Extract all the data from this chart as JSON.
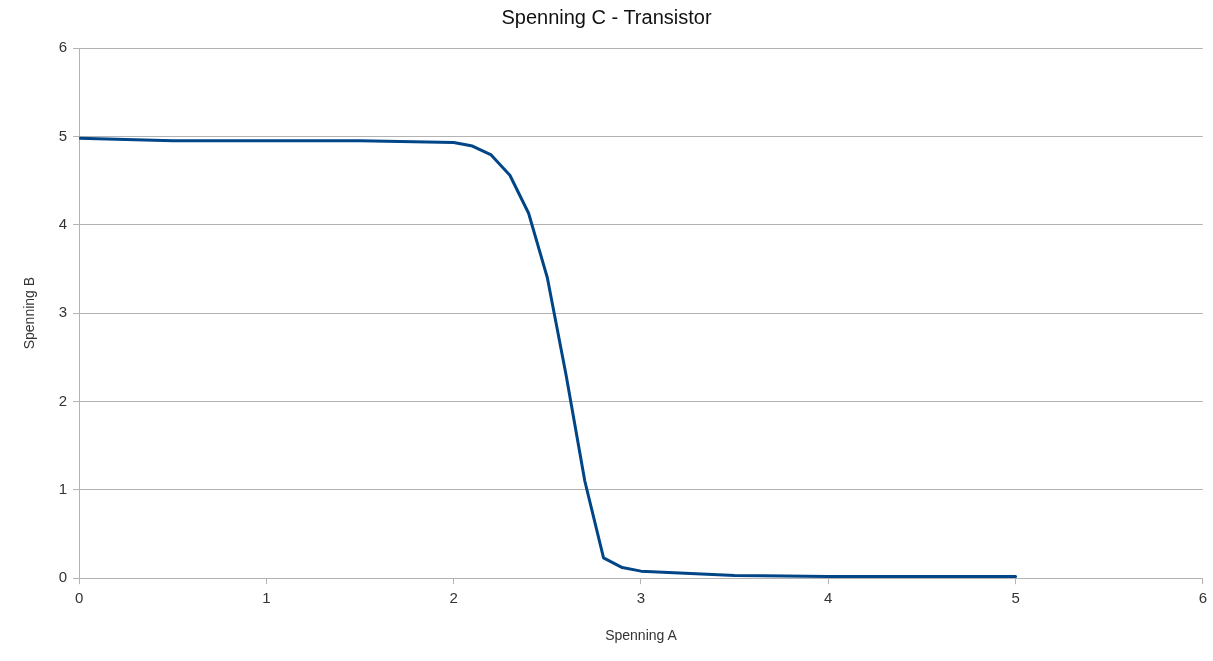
{
  "chart_data": {
    "type": "line",
    "title": "Spenning C - Transistor",
    "xlabel": "Spenning A",
    "ylabel": "Spenning B",
    "x": [
      0,
      0.5,
      1.5,
      2,
      2.1,
      2.2,
      2.3,
      2.4,
      2.5,
      2.6,
      2.7,
      2.8,
      2.9,
      3,
      3.5,
      4,
      5
    ],
    "series": [
      {
        "color": "#004586",
        "values": [
          4.98,
          4.95,
          4.95,
          4.93,
          4.89,
          4.79,
          4.56,
          4.13,
          3.4,
          2.3,
          1.1,
          0.23,
          0.12,
          0.08,
          0.03,
          0.02,
          0.02
        ]
      }
    ],
    "xlim": [
      0,
      6
    ],
    "xticks": [
      0,
      1,
      2,
      3,
      4,
      5,
      6
    ],
    "ylim": [
      0,
      6
    ],
    "yticks": [
      0,
      1,
      2,
      3,
      4,
      5,
      6
    ],
    "grid": "y",
    "legend": false,
    "marker": "none",
    "line_style": "solid"
  }
}
